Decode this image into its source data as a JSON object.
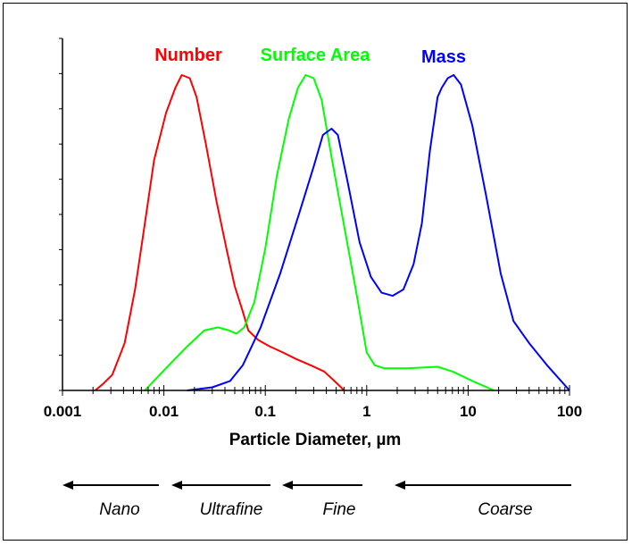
{
  "chart_data": {
    "type": "line",
    "x_scale": "log",
    "xlim": [
      0.001,
      100
    ],
    "ylim": [
      0,
      1
    ],
    "grid": false,
    "x_ticks": [
      {
        "value": 0.001,
        "label": "0.001"
      },
      {
        "value": 0.01,
        "label": "0.01"
      },
      {
        "value": 0.1,
        "label": "0.1"
      },
      {
        "value": 1,
        "label": "1"
      },
      {
        "value": 10,
        "label": "10"
      },
      {
        "value": 100,
        "label": "100"
      }
    ],
    "xlabel": "Particle Diameter, µm",
    "series": [
      {
        "name": "Number",
        "color": "#ff0000",
        "points": [
          [
            0.0021,
            0.0
          ],
          [
            0.0025,
            0.02
          ],
          [
            0.0031,
            0.05
          ],
          [
            0.0041,
            0.15
          ],
          [
            0.0052,
            0.32
          ],
          [
            0.0065,
            0.53
          ],
          [
            0.008,
            0.73
          ],
          [
            0.0105,
            0.88
          ],
          [
            0.013,
            0.96
          ],
          [
            0.015,
            1.0
          ],
          [
            0.018,
            0.99
          ],
          [
            0.021,
            0.93
          ],
          [
            0.026,
            0.78
          ],
          [
            0.033,
            0.6
          ],
          [
            0.042,
            0.44
          ],
          [
            0.05,
            0.33
          ],
          [
            0.06,
            0.25
          ],
          [
            0.068,
            0.19
          ],
          [
            0.085,
            0.16
          ],
          [
            0.11,
            0.14
          ],
          [
            0.15,
            0.12
          ],
          [
            0.2,
            0.1
          ],
          [
            0.28,
            0.08
          ],
          [
            0.38,
            0.06
          ],
          [
            0.48,
            0.03
          ],
          [
            0.6,
            0.0
          ]
        ]
      },
      {
        "name": "Surface Area",
        "color": "#00ff00",
        "points": [
          [
            0.0065,
            0.0
          ],
          [
            0.0085,
            0.04
          ],
          [
            0.012,
            0.09
          ],
          [
            0.017,
            0.14
          ],
          [
            0.025,
            0.19
          ],
          [
            0.034,
            0.2
          ],
          [
            0.044,
            0.19
          ],
          [
            0.052,
            0.18
          ],
          [
            0.062,
            0.2
          ],
          [
            0.078,
            0.28
          ],
          [
            0.1,
            0.45
          ],
          [
            0.13,
            0.68
          ],
          [
            0.17,
            0.86
          ],
          [
            0.21,
            0.96
          ],
          [
            0.25,
            1.0
          ],
          [
            0.3,
            0.99
          ],
          [
            0.36,
            0.92
          ],
          [
            0.45,
            0.74
          ],
          [
            0.6,
            0.52
          ],
          [
            0.8,
            0.3
          ],
          [
            1.0,
            0.12
          ],
          [
            1.2,
            0.08
          ],
          [
            1.5,
            0.07
          ],
          [
            2.5,
            0.07
          ],
          [
            5.0,
            0.075
          ],
          [
            7.0,
            0.06
          ],
          [
            11.0,
            0.03
          ],
          [
            18.0,
            0.0
          ]
        ]
      },
      {
        "name": "Mass",
        "color": "#0000ff",
        "points": [
          [
            0.017,
            0.0
          ],
          [
            0.03,
            0.01
          ],
          [
            0.045,
            0.03
          ],
          [
            0.06,
            0.08
          ],
          [
            0.09,
            0.2
          ],
          [
            0.14,
            0.37
          ],
          [
            0.22,
            0.57
          ],
          [
            0.3,
            0.71
          ],
          [
            0.37,
            0.81
          ],
          [
            0.45,
            0.83
          ],
          [
            0.52,
            0.81
          ],
          [
            0.65,
            0.66
          ],
          [
            0.85,
            0.47
          ],
          [
            1.1,
            0.36
          ],
          [
            1.4,
            0.31
          ],
          [
            1.8,
            0.3
          ],
          [
            2.3,
            0.32
          ],
          [
            2.9,
            0.4
          ],
          [
            3.5,
            0.53
          ],
          [
            4.2,
            0.76
          ],
          [
            5.0,
            0.93
          ],
          [
            5.5,
            0.96
          ],
          [
            6.3,
            0.99
          ],
          [
            7.2,
            1.0
          ],
          [
            8.5,
            0.97
          ],
          [
            11.0,
            0.84
          ],
          [
            15.0,
            0.62
          ],
          [
            21.0,
            0.37
          ],
          [
            28.0,
            0.22
          ],
          [
            40.0,
            0.15
          ],
          [
            60.0,
            0.08
          ],
          [
            100.0,
            0.0
          ]
        ]
      }
    ],
    "size_ranges": [
      {
        "label": "Nano",
        "arrow_from": 0.01,
        "arrow_to": 0.001
      },
      {
        "label": "Ultrafine",
        "arrow_from": 0.1,
        "arrow_to": 0.011
      },
      {
        "label": "Fine",
        "arrow_from": 1.0,
        "arrow_to": 0.11
      },
      {
        "label": "Coarse",
        "arrow_from": 100,
        "arrow_to": 1.05
      }
    ]
  }
}
